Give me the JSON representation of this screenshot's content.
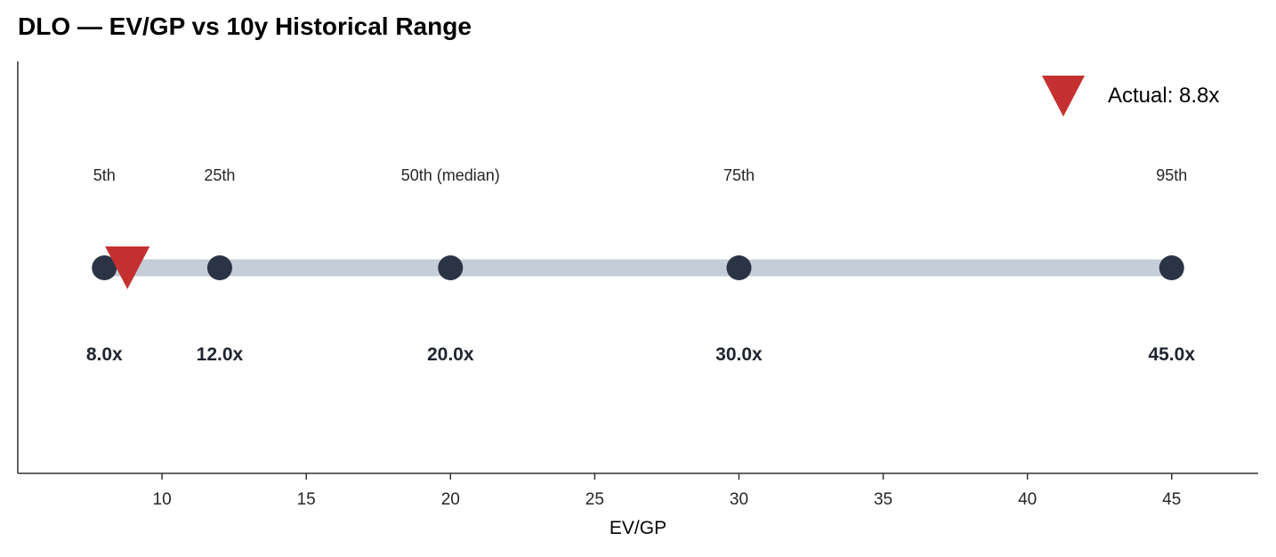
{
  "chart_data": {
    "type": "scatter",
    "title": "DLO — EV/GP vs 10y Historical Range",
    "xlabel": "EV/GP",
    "ylabel": "",
    "xlim": [
      5,
      48
    ],
    "x_ticks": [
      10,
      15,
      20,
      25,
      30,
      35,
      40,
      45
    ],
    "range": [
      8.0,
      45.0
    ],
    "percentiles": [
      {
        "label": "5th",
        "value": 8.0,
        "value_label": "8.0x"
      },
      {
        "label": "25th",
        "value": 12.0,
        "value_label": "12.0x"
      },
      {
        "label": "50th (median)",
        "value": 20.0,
        "value_label": "20.0x"
      },
      {
        "label": "75th",
        "value": 30.0,
        "value_label": "30.0x"
      },
      {
        "label": "95th",
        "value": 45.0,
        "value_label": "45.0x"
      }
    ],
    "actual": {
      "value": 8.8,
      "legend_label": "Actual: 8.8x"
    },
    "legend_position": "top-right",
    "grid": false,
    "colors": {
      "range_bar": "#c5cdd8",
      "percentile_marker": "#2b3445",
      "actual_marker": "#c53030",
      "axis": "#333333"
    }
  }
}
